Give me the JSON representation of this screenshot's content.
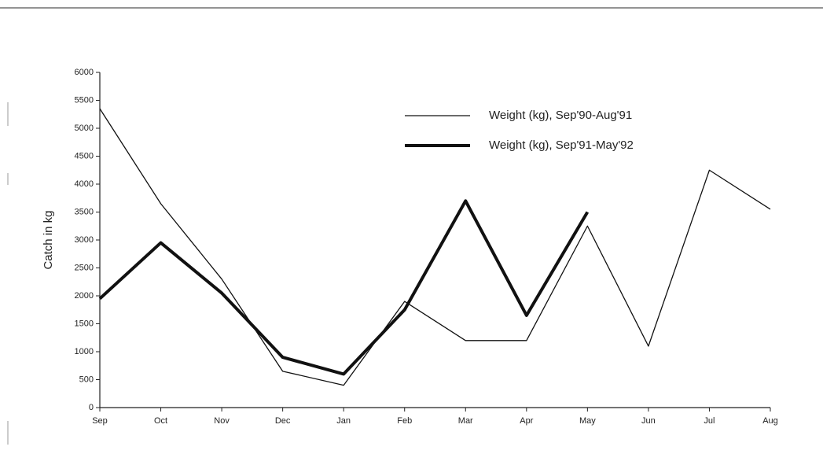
{
  "chart_data": {
    "type": "line",
    "y_label": "Catch in kg",
    "categories": [
      "Sep",
      "Oct",
      "Nov",
      "Dec",
      "Jan",
      "Feb",
      "Mar",
      "Apr",
      "May",
      "Jun",
      "Jul",
      "Aug"
    ],
    "series": [
      {
        "name": "Weight (kg), Sep'90-Aug'91",
        "color": "#111111",
        "width": 1.3,
        "values": [
          5350,
          3650,
          2300,
          650,
          400,
          1900,
          1200,
          1200,
          3250,
          1100,
          4250,
          3550
        ]
      },
      {
        "name": "Weight (kg), Sep'91-May'92",
        "color": "#111111",
        "width": 4,
        "values": [
          1950,
          2950,
          2050,
          900,
          600,
          1750,
          3700,
          1650,
          3500,
          null,
          null,
          null
        ]
      }
    ],
    "ylim": [
      0,
      6000
    ],
    "yticks": [
      0,
      500,
      1000,
      1500,
      2000,
      2500,
      3000,
      3500,
      4000,
      4500,
      5000,
      5500,
      6000
    ]
  }
}
